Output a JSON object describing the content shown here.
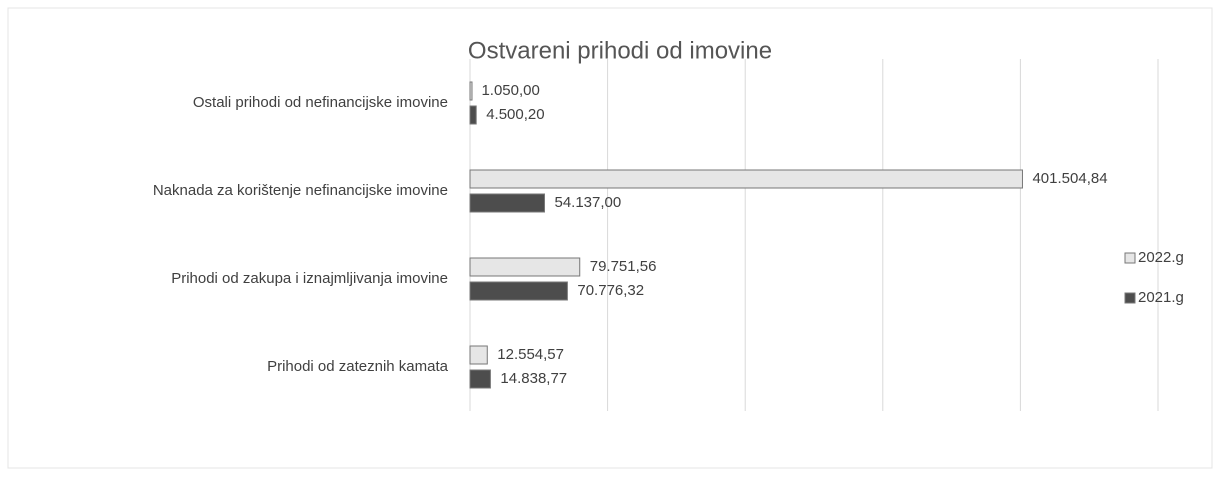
{
  "chart_data": {
    "type": "bar",
    "orientation": "horizontal",
    "title": "Ostvareni prihodi od imovine",
    "categories": [
      "Ostali prihodi od nefinancijske imovine",
      "Naknada za korištenje nefinancijske imovine",
      "Prihodi od zakupa i iznajmljivanja imovine",
      "Prihodi od zateznih kamata"
    ],
    "series": [
      {
        "name": "2022.g",
        "color": "#e6e6e6",
        "values": [
          1050.0,
          401504.84,
          79751.56,
          12554.57
        ],
        "value_labels": [
          "1.050,00",
          "401.504,84",
          "79.751,56",
          "12.554,57"
        ]
      },
      {
        "name": "2021.g",
        "color": "#4d4d4d",
        "values": [
          4500.2,
          54137.0,
          70776.32,
          14838.77
        ],
        "value_labels": [
          "4.500,20",
          "54.137,00",
          "70.776,32",
          "14.838,77"
        ]
      }
    ],
    "xlim": [
      0,
      500000
    ],
    "xticks": [
      0,
      100000,
      200000,
      300000,
      400000,
      500000
    ],
    "grid": true,
    "legend": "right"
  }
}
